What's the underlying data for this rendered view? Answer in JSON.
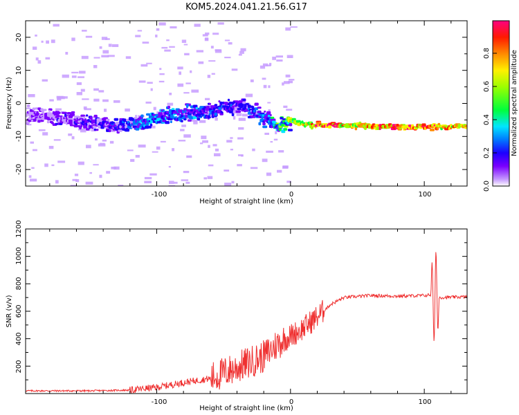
{
  "title": "KOM5.2024.041.21.56.G17",
  "chart_data": [
    {
      "type": "heatmap",
      "xlabel": "Height of straight line (km)",
      "ylabel": "Frequency (Hz)",
      "xlim": [
        -198,
        132
      ],
      "ylim": [
        -25,
        25
      ],
      "xticks": [
        -100,
        0,
        100
      ],
      "yticks": [
        -20,
        -10,
        0,
        10,
        20
      ],
      "colorbar": {
        "label": "Normalized spectral amplitude",
        "range": [
          0,
          1
        ],
        "ticks": [
          "0.0",
          "0.2",
          "0.4",
          "0.6",
          "0.8"
        ],
        "colormap": [
          "#ffffff",
          "#c79cff",
          "#7a00ff",
          "#1d00ff",
          "#0078ff",
          "#00e5ff",
          "#00ff3c",
          "#9cff00",
          "#fff000",
          "#ff8a00",
          "#ff1a00",
          "#ff0080"
        ]
      },
      "ridge": {
        "x": [
          -195,
          -170,
          -150,
          -130,
          -110,
          -95,
          -80,
          -65,
          -50,
          -40,
          -30,
          -20,
          -10,
          0,
          10,
          25,
          45,
          65,
          85,
          105,
          125
        ],
        "freq": [
          -3.5,
          -4.5,
          -6.0,
          -7.0,
          -5.5,
          -4.0,
          -3.0,
          -2.5,
          -1.5,
          -0.5,
          -2.0,
          -4.5,
          -6.5,
          -5.5,
          -6.5,
          -6.5,
          -6.7,
          -6.8,
          -7.0,
          -7.2,
          -7.0
        ],
        "amplitude": [
          0.15,
          0.18,
          0.2,
          0.25,
          0.32,
          0.35,
          0.3,
          0.3,
          0.25,
          0.22,
          0.25,
          0.3,
          0.45,
          0.55,
          0.75,
          0.9,
          0.7,
          0.85,
          0.9,
          0.85,
          0.75
        ]
      }
    },
    {
      "type": "line",
      "xlabel": "Height of straight line (km)",
      "ylabel": "SNR (v/v)",
      "xlim": [
        -198,
        132
      ],
      "ylim": [
        0,
        1200
      ],
      "xticks": [
        -100,
        0,
        100
      ],
      "yticks": [
        200,
        400,
        600,
        800,
        1000,
        1200
      ],
      "color": "#ef3030",
      "trend": {
        "x": [
          -198,
          -150,
          -120,
          -100,
          -80,
          -60,
          -40,
          -20,
          -10,
          0,
          10,
          20,
          30,
          40,
          60,
          80,
          100,
          105,
          110,
          132
        ],
        "snr": [
          20,
          20,
          25,
          45,
          80,
          110,
          190,
          270,
          360,
          420,
          480,
          560,
          650,
          700,
          715,
          710,
          715,
          720,
          700,
          705
        ]
      }
    }
  ]
}
